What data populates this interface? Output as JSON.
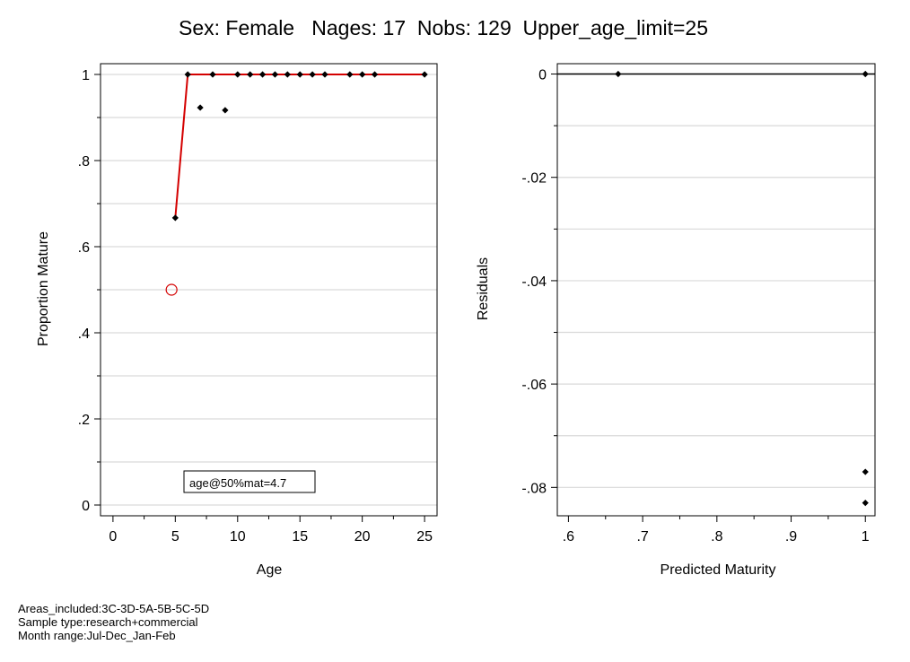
{
  "title": "Sex: Female   Nages: 17  Nobs: 129  Upper_age_limit=25",
  "footer": {
    "areas": "Areas_included:3C-3D-5A-5B-5C-5D",
    "sample": "Sample type:research+commercial",
    "months": "Month range:Jul-Dec_Jan-Feb"
  },
  "colors": {
    "fit_line": "#d40000",
    "points": "#000000",
    "grid": "#d9d9d9",
    "marker_50": "#d40000"
  },
  "chart_data": [
    {
      "type": "scatter",
      "xlabel": "Age",
      "ylabel": "Proportion Mature",
      "xlim": [
        -1,
        26
      ],
      "ylim": [
        -0.025,
        1.025
      ],
      "x_ticks": [
        0,
        5,
        10,
        15,
        20,
        25
      ],
      "x_tick_labels": [
        "0",
        "5",
        "10",
        "15",
        "20",
        "25"
      ],
      "y_ticks": [
        0,
        0.2,
        0.4,
        0.6,
        0.8,
        1
      ],
      "y_tick_labels": [
        "0",
        ".2",
        ".4",
        ".6",
        ".8",
        "1"
      ],
      "grid": true,
      "series": [
        {
          "kind": "observed",
          "x": [
            5,
            6,
            7,
            8,
            9,
            10,
            11,
            12,
            13,
            14,
            15,
            16,
            17,
            19,
            20,
            21,
            25
          ],
          "y": [
            0.667,
            1,
            0.923,
            1,
            0.917,
            1,
            1,
            1,
            1,
            1,
            1,
            1,
            1,
            1,
            1,
            1,
            1
          ]
        },
        {
          "kind": "fitted",
          "x": [
            5,
            6,
            7,
            8,
            9,
            10,
            11,
            12,
            13,
            14,
            15,
            16,
            17,
            19,
            20,
            21,
            25
          ],
          "y": [
            0.667,
            1,
            1,
            1,
            1,
            1,
            1,
            1,
            1,
            1,
            1,
            1,
            1,
            1,
            1,
            1,
            1
          ]
        }
      ],
      "a50": {
        "x": 4.7,
        "y": 0.5
      },
      "annotation": "age@50%mat=4.7"
    },
    {
      "type": "scatter",
      "xlabel": "Predicted Maturity",
      "ylabel": "Residuals",
      "xlim": [
        0.585,
        1.013
      ],
      "ylim": [
        -0.0855,
        0.002
      ],
      "x_ticks": [
        0.6,
        0.7,
        0.8,
        0.9,
        1
      ],
      "x_tick_labels": [
        ".6",
        ".7",
        ".8",
        ".9",
        "1"
      ],
      "y_ticks": [
        0,
        -0.02,
        -0.04,
        -0.06,
        -0.08
      ],
      "y_tick_labels": [
        "0",
        "-.02",
        "-.04",
        "-.06",
        "-.08"
      ],
      "grid": true,
      "series": [
        {
          "kind": "residuals",
          "x": [
            0.667,
            1,
            1,
            1
          ],
          "y": [
            0,
            0,
            -0.077,
            -0.083
          ]
        }
      ],
      "reference_line": 0
    }
  ]
}
